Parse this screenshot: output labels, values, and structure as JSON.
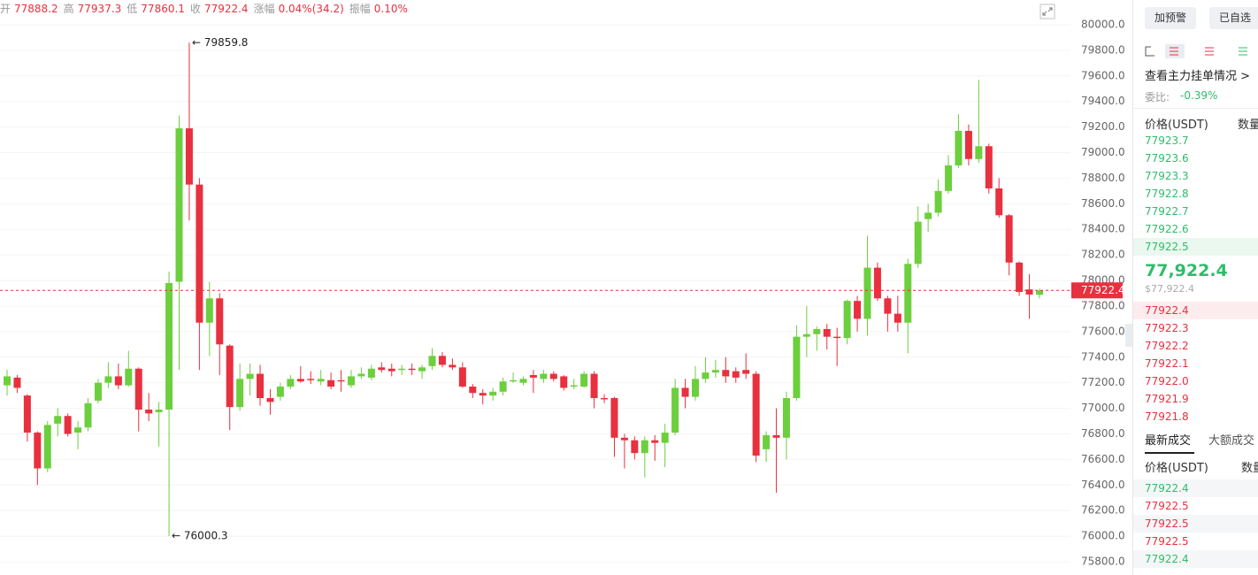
{
  "chart_data": {
    "type": "candlestick",
    "header": [
      {
        "label": "开",
        "value": "77888.2"
      },
      {
        "label": "高",
        "value": "77937.3"
      },
      {
        "label": "低",
        "value": "77860.1"
      },
      {
        "label": "收",
        "value": "77922.4"
      },
      {
        "label": "涨幅",
        "value": "0.04%(34.2)"
      },
      {
        "label": "振幅",
        "value": "0.10%"
      }
    ],
    "up_color": "#6ccf3d",
    "down_color": "#e8303f",
    "ylim": [
      75730,
      80060
    ],
    "yticks": [
      {
        "value": 80000,
        "label": "80000.0"
      },
      {
        "value": 79800,
        "label": "79800.0"
      },
      {
        "value": 79600,
        "label": "79600.0"
      },
      {
        "value": 79400,
        "label": "79400.0"
      },
      {
        "value": 79200,
        "label": "79200.0"
      },
      {
        "value": 79000,
        "label": "79000.0"
      },
      {
        "value": 78800,
        "label": "78800.0"
      },
      {
        "value": 78600,
        "label": "78600.0"
      },
      {
        "value": 78400,
        "label": "78400.0"
      },
      {
        "value": 78200,
        "label": "78200.0"
      },
      {
        "value": 78000,
        "label": "78000.0"
      },
      {
        "value": 77800,
        "label": "77800.0"
      },
      {
        "value": 77600,
        "label": "77600.0"
      },
      {
        "value": 77400,
        "label": "77400.0"
      },
      {
        "value": 77200,
        "label": "77200.0"
      },
      {
        "value": 77000,
        "label": "77000.0"
      },
      {
        "value": 76800,
        "label": "76800.0"
      },
      {
        "value": 76600,
        "label": "76600.0"
      },
      {
        "value": 76400,
        "label": "76400.0"
      },
      {
        "value": 76200,
        "label": "76200.0"
      },
      {
        "value": 76000,
        "label": "76000.0"
      },
      {
        "value": 75800,
        "label": "75800.0"
      }
    ],
    "grid": true,
    "last_price": 77922.4,
    "high_annotation": "← 79859.8",
    "low_annotation": "← 76000.3",
    "open": [
      77180,
      77240,
      77100,
      76810,
      76530,
      76880,
      76940,
      76810,
      76850,
      77060,
      77200,
      77250,
      77180,
      77310,
      76990,
      76970,
      76990,
      77990,
      79190,
      78750,
      77670,
      77860,
      77490,
      77010,
      77230,
      77270,
      77080,
      77090,
      77170,
      77230,
      77230,
      77210,
      77220,
      77220,
      77180,
      77250,
      77240,
      77320,
      77310,
      77300,
      77310,
      77290,
      77330,
      77410,
      77340,
      77320,
      77170,
      77120,
      77100,
      77130,
      77210,
      77200,
      77260,
      77230,
      77270,
      77250,
      77170,
      77170,
      77270,
      77080,
      77080,
      76770,
      76750,
      76650,
      76750,
      76730,
      76810,
      77160,
      77090,
      77230,
      77280,
      77300,
      77290,
      77300,
      77270,
      76680,
      76790,
      76770,
      77080,
      77560,
      77580,
      77620,
      77560,
      77550,
      77840,
      77700,
      78100,
      77860,
      77740,
      77670,
      78130,
      78480,
      78530,
      78700,
      78900,
      79170,
      78950,
      79050,
      78720,
      78510,
      78140,
      77930,
      77888.2
    ],
    "high": [
      77300,
      77260,
      77110,
      76820,
      76900,
      77000,
      76960,
      76900,
      77080,
      77230,
      77360,
      77350,
      77450,
      77320,
      77120,
      77050,
      78070,
      79290,
      79859.8,
      78800,
      77990,
      77900,
      77500,
      77350,
      77350,
      77340,
      77150,
      77200,
      77260,
      77330,
      77290,
      77300,
      77280,
      77300,
      77300,
      77320,
      77340,
      77360,
      77350,
      77340,
      77350,
      77340,
      77470,
      77440,
      77390,
      77360,
      77190,
      77150,
      77160,
      77240,
      77280,
      77250,
      77300,
      77300,
      77290,
      77260,
      77230,
      77290,
      77290,
      77110,
      77090,
      76800,
      76780,
      76780,
      76790,
      76880,
      77230,
      77230,
      77330,
      77400,
      77380,
      77400,
      77320,
      77430,
      77290,
      76820,
      77000,
      77130,
      77650,
      77800,
      77640,
      77660,
      77630,
      77850,
      77880,
      78350,
      78140,
      77880,
      77880,
      78170,
      78580,
      78600,
      78790,
      78980,
      79300,
      79220,
      79570,
      79070,
      78800,
      78520,
      78150,
      78050,
      77937.3
    ],
    "low": [
      77100,
      77120,
      76740,
      76400,
      76500,
      76780,
      76780,
      76680,
      76820,
      77040,
      77160,
      77150,
      77170,
      76820,
      76900,
      76700,
      76000.3,
      77300,
      78470,
      77300,
      77410,
      77260,
      76830,
      76980,
      77100,
      77020,
      76950,
      77060,
      77150,
      77200,
      77190,
      77180,
      77150,
      77130,
      77160,
      77230,
      77220,
      77280,
      77250,
      77260,
      77260,
      77230,
      77300,
      77320,
      77300,
      77160,
      77080,
      77030,
      77060,
      77100,
      77200,
      77180,
      77120,
      77200,
      77210,
      77140,
      77150,
      77160,
      77000,
      77040,
      76620,
      76530,
      76600,
      76460,
      76590,
      76540,
      76790,
      77000,
      77060,
      77200,
      77240,
      77200,
      77200,
      77230,
      76580,
      76580,
      76340,
      76600,
      77060,
      77400,
      77450,
      77460,
      77330,
      77500,
      77600,
      77570,
      77840,
      77600,
      77600,
      77430,
      78100,
      78380,
      78500,
      78680,
      78880,
      78900,
      78920,
      78680,
      78490,
      78040,
      77880,
      77700,
      77860.1
    ],
    "close": [
      77250,
      77160,
      76810,
      76530,
      76870,
      76940,
      76800,
      76850,
      77040,
      77200,
      77250,
      77180,
      77310,
      76990,
      76960,
      76990,
      77980,
      79190,
      78750,
      77670,
      77860,
      77500,
      77010,
      77230,
      77270,
      77080,
      77050,
      77170,
      77230,
      77210,
      77220,
      77230,
      77170,
      77210,
      77250,
      77270,
      77310,
      77300,
      77290,
      77310,
      77300,
      77320,
      77410,
      77340,
      77320,
      77170,
      77120,
      77100,
      77130,
      77210,
      77220,
      77230,
      77240,
      77270,
      77230,
      77160,
      77180,
      77270,
      77080,
      77070,
      76770,
      76750,
      76650,
      76750,
      76730,
      76810,
      77160,
      77090,
      77230,
      77280,
      77300,
      77250,
      77240,
      77270,
      76630,
      76790,
      76770,
      77080,
      77560,
      77580,
      77620,
      77560,
      77550,
      77840,
      77700,
      78100,
      77860,
      77740,
      77670,
      78130,
      78460,
      78530,
      78700,
      78900,
      79170,
      78950,
      79050,
      78720,
      78510,
      78140,
      77910,
      77890,
      77922.4
    ]
  },
  "side_panel": {
    "buttons": [
      "加预警",
      "已自选"
    ],
    "main_orders_link": "查看主力挂单情况 >",
    "ratio_label": "委比:",
    "ratio_value": "-0.39%",
    "book_headers": [
      "价格(USDT)",
      "数量"
    ],
    "asks": {
      "color": "#2ebd6b",
      "prices": [
        "77923.7",
        "77923.6",
        "77923.3",
        "77922.8",
        "77922.7",
        "77922.6",
        "77922.5"
      ]
    },
    "last_price": "77,922.4",
    "last_price_usd": "$77,922.4",
    "bids": {
      "color": "#e8303f",
      "prices": [
        "77922.4",
        "77922.3",
        "77922.2",
        "77922.1",
        "77922.0",
        "77921.9",
        "77921.8"
      ]
    },
    "tabs": [
      "最新成交",
      "大额成交"
    ],
    "trade_headers": [
      "价格(USDT)",
      "数量"
    ],
    "trades": [
      {
        "price": "77922.4",
        "color": "#2ebd6b"
      },
      {
        "price": "77922.5",
        "color": "#e8303f"
      },
      {
        "price": "77922.5",
        "color": "#e8303f"
      },
      {
        "price": "77922.5",
        "color": "#e8303f"
      },
      {
        "price": "77922.4",
        "color": "#2ebd6b"
      }
    ]
  }
}
